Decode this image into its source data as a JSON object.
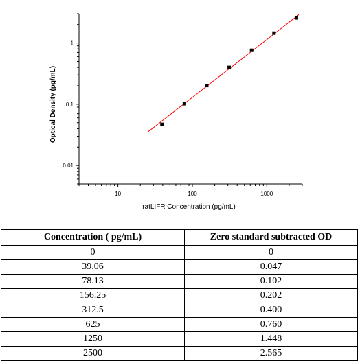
{
  "chart_data": {
    "type": "scatter",
    "xlabel": "ratLIFR Concentration (pg/mL)",
    "ylabel": "Optical Density (pg/mL)",
    "x_scale": "log",
    "y_scale": "log",
    "xlim": [
      3,
      3000
    ],
    "ylim": [
      0.005,
      3
    ],
    "x_ticks": [
      {
        "value": 10,
        "label": "10"
      },
      {
        "value": 100,
        "label": "100"
      },
      {
        "value": 1000,
        "label": "1000"
      }
    ],
    "y_ticks": [
      {
        "value": 0.01,
        "label": "0.01"
      },
      {
        "value": 0.1,
        "label": "0.1"
      },
      {
        "value": 1,
        "label": "1"
      }
    ],
    "points": [
      {
        "x": 39.06,
        "y": 0.047
      },
      {
        "x": 78.13,
        "y": 0.102
      },
      {
        "x": 156.25,
        "y": 0.202
      },
      {
        "x": 312.5,
        "y": 0.4
      },
      {
        "x": 625,
        "y": 0.76
      },
      {
        "x": 1250,
        "y": 1.448
      },
      {
        "x": 2500,
        "y": 2.565
      }
    ],
    "fit_line": {
      "x": [
        25,
        2700
      ],
      "y": [
        0.035,
        2.9
      ],
      "color": "#ff0000"
    },
    "point_color": "#000000",
    "grid": false
  },
  "table": {
    "headers": [
      "Concentration ( pg/mL)",
      "Zero standard subtracted OD"
    ],
    "rows": [
      [
        "0",
        "0"
      ],
      [
        "39.06",
        "0.047"
      ],
      [
        "78.13",
        "0.102"
      ],
      [
        "156.25",
        "0.202"
      ],
      [
        "312.5",
        "0.400"
      ],
      [
        "625",
        "0.760"
      ],
      [
        "1250",
        "1.448"
      ],
      [
        "2500",
        "2.565"
      ]
    ]
  }
}
